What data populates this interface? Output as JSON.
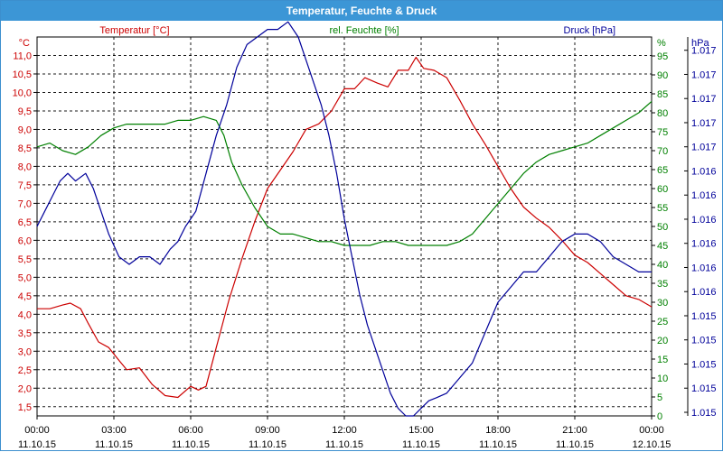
{
  "window": {
    "title": "Temperatur, Feuchte & Druck"
  },
  "colors": {
    "temperature": "#cc0000",
    "humidity": "#008000",
    "pressure": "#00009a",
    "titlebar": "#3c96d6",
    "grid": "#000000"
  },
  "chart_data": {
    "type": "line",
    "title": "Temperatur, Feuchte & Druck",
    "grid": true,
    "x_ticks": [
      {
        "time": "00:00",
        "date": "11.10.15"
      },
      {
        "time": "03:00",
        "date": "11.10.15"
      },
      {
        "time": "06:00",
        "date": "11.10.15"
      },
      {
        "time": "09:00",
        "date": "11.10.15"
      },
      {
        "time": "12:00",
        "date": "11.10.15"
      },
      {
        "time": "15:00",
        "date": "11.10.15"
      },
      {
        "time": "18:00",
        "date": "11.10.15"
      },
      {
        "time": "21:00",
        "date": "11.10.15"
      },
      {
        "time": "00:00",
        "date": "12.10.15"
      }
    ],
    "x_range_hours": [
      0,
      24
    ],
    "axes": {
      "temperature": {
        "label": "Temperatur [°C]",
        "unit": "°C",
        "range": [
          1.25,
          11.5
        ],
        "ticks": [
          "1,5",
          "2,0",
          "2,5",
          "3,0",
          "3,5",
          "4,0",
          "4,5",
          "5,0",
          "5,5",
          "6,0",
          "6,5",
          "7,0",
          "7,5",
          "8,0",
          "8,5",
          "9,0",
          "9,5",
          "10,0",
          "10,5",
          "11,0"
        ]
      },
      "humidity": {
        "label": "rel. Feuchte [%]",
        "unit": "%",
        "range": [
          0,
          100
        ],
        "ticks": [
          "0",
          "5",
          "10",
          "15",
          "20",
          "25",
          "30",
          "35",
          "40",
          "45",
          "50",
          "55",
          "60",
          "65",
          "70",
          "75",
          "80",
          "85",
          "90",
          "95"
        ]
      },
      "pressure": {
        "label": "Druck [hPa]",
        "unit": "hPa",
        "range": [
          1015.0,
          1017.5
        ],
        "ticks": [
          "1.015",
          "1.015",
          "1.015",
          "1.015",
          "1.015",
          "1.016",
          "1.016",
          "1.016",
          "1.016",
          "1.016",
          "1.016",
          "1.017",
          "1.017",
          "1.017",
          "1.017",
          "1.017"
        ]
      }
    },
    "series": [
      {
        "name": "Temperatur [°C]",
        "axis": "temperature",
        "x": [
          0,
          0.5,
          1,
          1.3,
          1.7,
          2,
          2.4,
          2.8,
          3.2,
          3.5,
          4,
          4.5,
          5,
          5.5,
          6,
          6.3,
          6.6,
          7,
          7.5,
          8,
          8.5,
          9,
          9.5,
          10,
          10.5,
          11,
          11.5,
          12,
          12.4,
          12.8,
          13.3,
          13.7,
          14.1,
          14.5,
          14.8,
          15.1,
          15.5,
          16,
          16.5,
          17,
          17.5,
          18,
          18.5,
          19,
          19.5,
          20,
          20.5,
          21,
          21.5,
          22,
          22.5,
          23,
          23.5,
          24
        ],
        "values": [
          4.15,
          4.15,
          4.25,
          4.3,
          4.15,
          3.75,
          3.25,
          3.1,
          2.75,
          2.5,
          2.55,
          2.1,
          1.8,
          1.75,
          2.05,
          1.95,
          2.05,
          3.1,
          4.4,
          5.5,
          6.5,
          7.4,
          7.9,
          8.4,
          9.0,
          9.15,
          9.5,
          10.1,
          10.1,
          10.4,
          10.25,
          10.15,
          10.6,
          10.6,
          10.95,
          10.65,
          10.6,
          10.4,
          9.8,
          9.15,
          8.6,
          8.0,
          7.4,
          6.9,
          6.6,
          6.35,
          6.0,
          5.6,
          5.4,
          5.1,
          4.8,
          4.5,
          4.4,
          4.2
        ]
      },
      {
        "name": "rel. Feuchte [%]",
        "axis": "humidity",
        "x": [
          0,
          0.5,
          1,
          1.5,
          2,
          2.5,
          3,
          3.5,
          4,
          4.5,
          5,
          5.5,
          6,
          6.5,
          7,
          7.3,
          7.6,
          8,
          8.5,
          9,
          9.5,
          10,
          10.5,
          11,
          11.5,
          12,
          12.5,
          13,
          13.5,
          14,
          14.5,
          15,
          15.5,
          16,
          16.5,
          17,
          17.5,
          18,
          18.5,
          19,
          19.5,
          20,
          20.5,
          21,
          21.5,
          22,
          22.5,
          23,
          23.5,
          24
        ],
        "values": [
          71,
          72,
          70,
          69,
          71,
          74,
          76,
          77,
          77,
          77,
          77,
          78,
          78,
          79,
          78,
          74,
          67,
          61,
          55,
          50,
          48,
          48,
          47,
          46,
          46,
          45,
          45,
          45,
          46,
          46,
          45,
          45,
          45,
          45,
          46,
          48,
          52,
          56,
          60,
          64,
          67,
          69,
          70,
          71,
          72,
          74,
          76,
          78,
          80,
          83
        ]
      },
      {
        "name": "Druck [hPa]",
        "axis": "pressure",
        "x": [
          0,
          0.3,
          0.6,
          0.9,
          1.2,
          1.5,
          1.9,
          2.2,
          2.5,
          2.8,
          3.2,
          3.6,
          4,
          4.4,
          4.8,
          5.2,
          5.5,
          5.8,
          6.2,
          6.6,
          7,
          7.4,
          7.8,
          8.2,
          8.6,
          9,
          9.4,
          9.8,
          10.2,
          10.5,
          10.8,
          11.1,
          11.4,
          11.7,
          12,
          12.3,
          12.6,
          12.9,
          13.2,
          13.5,
          13.8,
          14.1,
          14.4,
          14.7,
          15,
          15.3,
          15.6,
          16,
          16.5,
          17,
          17.5,
          18,
          18.5,
          19,
          19.5,
          20,
          20.5,
          21,
          21.5,
          22,
          22.5,
          23,
          23.5,
          24
        ],
        "values": [
          1016.25,
          1016.35,
          1016.45,
          1016.55,
          1016.6,
          1016.55,
          1016.6,
          1016.5,
          1016.35,
          1016.2,
          1016.05,
          1016.0,
          1016.05,
          1016.05,
          1016.0,
          1016.1,
          1016.15,
          1016.25,
          1016.35,
          1016.6,
          1016.85,
          1017.05,
          1017.3,
          1017.45,
          1017.5,
          1017.55,
          1017.55,
          1017.6,
          1017.5,
          1017.35,
          1017.2,
          1017.05,
          1016.85,
          1016.6,
          1016.3,
          1016.05,
          1015.8,
          1015.6,
          1015.45,
          1015.3,
          1015.15,
          1015.05,
          1015.0,
          1015.0,
          1015.05,
          1015.1,
          1015.12,
          1015.15,
          1015.25,
          1015.35,
          1015.55,
          1015.75,
          1015.85,
          1015.95,
          1015.95,
          1016.05,
          1016.15,
          1016.2,
          1016.2,
          1016.15,
          1016.05,
          1016.0,
          1015.95,
          1015.95
        ]
      }
    ]
  }
}
